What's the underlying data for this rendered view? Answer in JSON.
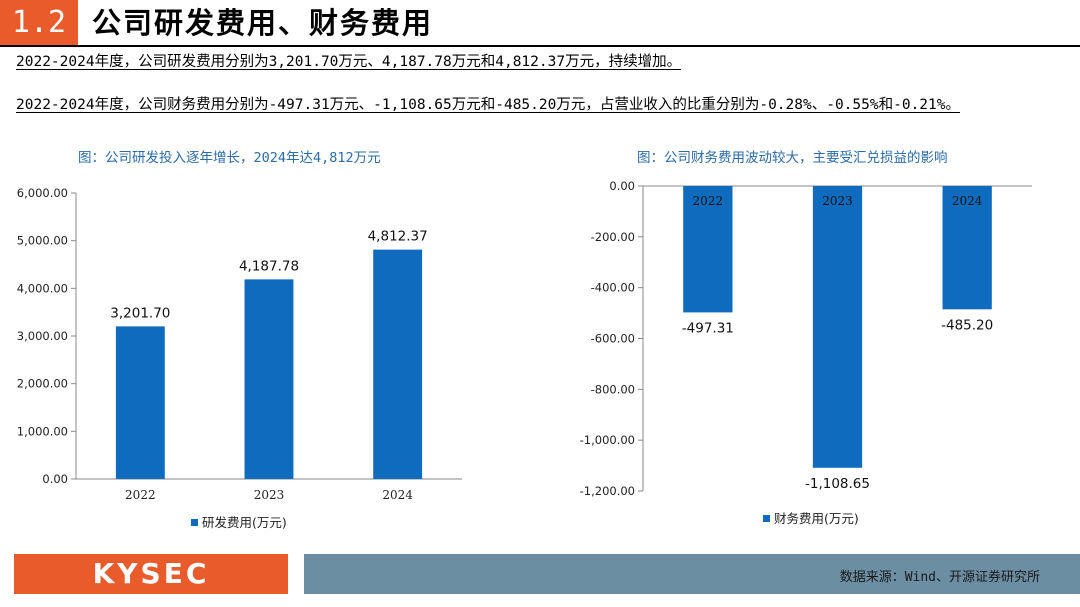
{
  "header": {
    "section_number": "1.2",
    "title": "公司研发费用、财务费用"
  },
  "body": {
    "paragraph_1": "2022-2024年度，公司研发费用分别为3,201.70万元、4,187.78万元和4,812.37万元，持续增加。",
    "paragraph_2": "2022-2024年度，公司财务费用分别为-497.31万元、-1,108.65万元和-485.20万元，占营业收入的比重分别为-0.28%、-0.55%和-0.21%。"
  },
  "captions": {
    "left": "图：公司研发投入逐年增长，2024年达4,812万元",
    "right": "图：公司财务费用波动较大，主要受汇兑损益的影响"
  },
  "footer": {
    "logo": "KYSEC",
    "source": "数据来源：Wind、开源证券研究所"
  },
  "colors": {
    "accent": "#ea5b2b",
    "bar": "#0e6bbd",
    "caption": "#2a6ba8",
    "footer_bar": "#6b8ea3"
  },
  "chart_data": [
    {
      "type": "bar",
      "title": "图：公司研发投入逐年增长，2024年达4,812万元",
      "categories": [
        "2022",
        "2023",
        "2024"
      ],
      "series": [
        {
          "name": "研发费用(万元)",
          "values": [
            3201.7,
            4187.78,
            4812.37
          ]
        }
      ],
      "value_labels": [
        "3,201.70",
        "4,187.78",
        "4,812.37"
      ],
      "ylim": [
        0,
        6000
      ],
      "yticks": [
        0,
        1000,
        2000,
        3000,
        4000,
        5000,
        6000
      ],
      "ytick_labels": [
        "0.00",
        "1,000.00",
        "2,000.00",
        "3,000.00",
        "4,000.00",
        "5,000.00",
        "6,000.00"
      ],
      "legend": "bottom",
      "grid": false
    },
    {
      "type": "bar",
      "title": "图：公司财务费用波动较大，主要受汇兑损益的影响",
      "categories": [
        "2022",
        "2023",
        "2024"
      ],
      "series": [
        {
          "name": "财务费用(万元)",
          "values": [
            -497.31,
            -1108.65,
            -485.2
          ]
        }
      ],
      "value_labels": [
        "-497.31",
        "-1,108.65",
        "-485.20"
      ],
      "ylim": [
        -1200,
        0
      ],
      "yticks": [
        0,
        -200,
        -400,
        -600,
        -800,
        -1000,
        -1200
      ],
      "ytick_labels": [
        "0.00",
        "-200.00",
        "-400.00",
        "-600.00",
        "-800.00",
        "-1,000.00",
        "-1,200.00"
      ],
      "legend": "bottom",
      "grid": false
    }
  ]
}
